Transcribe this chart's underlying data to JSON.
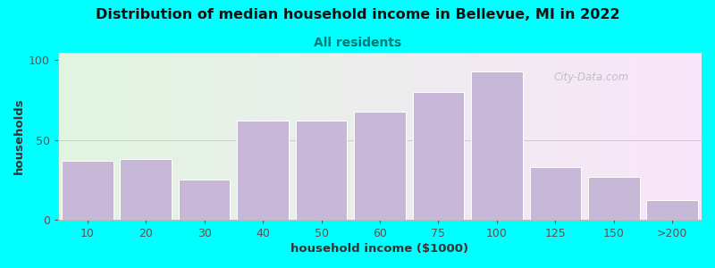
{
  "title": "Distribution of median household income in Bellevue, MI in 2022",
  "subtitle": "All residents",
  "xlabel": "household income ($1000)",
  "ylabel": "households",
  "bar_labels": [
    "10",
    "20",
    "30",
    "40",
    "50",
    "60",
    "75",
    "100",
    "125",
    "150",
    ">200"
  ],
  "bar_heights": [
    37,
    38,
    25,
    62,
    62,
    68,
    80,
    93,
    33,
    27,
    12
  ],
  "bar_color": "#c8b8d8",
  "bar_edge_color": "#ffffff",
  "ylim": [
    0,
    105
  ],
  "yticks": [
    0,
    50,
    100
  ],
  "background_color": "#00ffff",
  "title_fontsize": 11.5,
  "subtitle_fontsize": 10,
  "subtitle_color": "#007777",
  "axis_label_fontsize": 9.5,
  "tick_fontsize": 9,
  "watermark_text": "City-Data.com",
  "fig_width": 8.0,
  "fig_height": 3.0
}
